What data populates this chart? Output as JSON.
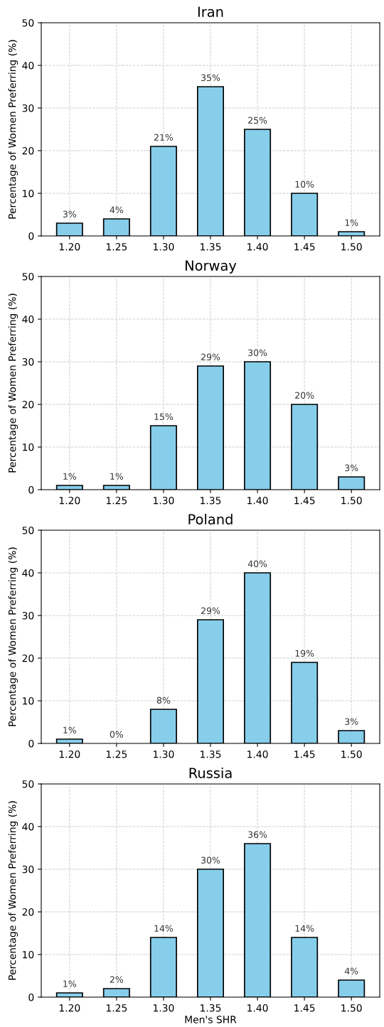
{
  "chart_data": [
    {
      "type": "bar",
      "title": "Iran",
      "ylabel": "Percentage of Women Preferring (%)",
      "categories": [
        "1.20",
        "1.25",
        "1.30",
        "1.35",
        "1.40",
        "1.45",
        "1.50"
      ],
      "values": [
        3,
        4,
        21,
        35,
        25,
        10,
        1
      ],
      "value_labels": [
        "3%",
        "4%",
        "21%",
        "35%",
        "25%",
        "10%",
        "1%"
      ],
      "color": "#87ceeb",
      "ylim": [
        0,
        50
      ],
      "yticks": [
        0,
        10,
        20,
        30,
        40,
        50
      ],
      "grid": true
    },
    {
      "type": "bar",
      "title": "Norway",
      "ylabel": "Percentage of Women Preferring (%)",
      "categories": [
        "1.20",
        "1.25",
        "1.30",
        "1.35",
        "1.40",
        "1.45",
        "1.50"
      ],
      "values": [
        1,
        1,
        15,
        29,
        30,
        20,
        3
      ],
      "value_labels": [
        "1%",
        "1%",
        "15%",
        "29%",
        "30%",
        "20%",
        "3%"
      ],
      "color": "#87ceeb",
      "ylim": [
        0,
        50
      ],
      "yticks": [
        0,
        10,
        20,
        30,
        40,
        50
      ],
      "grid": true
    },
    {
      "type": "bar",
      "title": "Poland",
      "ylabel": "Percentage of Women Preferring (%)",
      "categories": [
        "1.20",
        "1.25",
        "1.30",
        "1.35",
        "1.40",
        "1.45",
        "1.50"
      ],
      "values": [
        1,
        0,
        8,
        29,
        40,
        19,
        3
      ],
      "value_labels": [
        "1%",
        "0%",
        "8%",
        "29%",
        "40%",
        "19%",
        "3%"
      ],
      "color": "#87ceeb",
      "ylim": [
        0,
        50
      ],
      "yticks": [
        0,
        10,
        20,
        30,
        40,
        50
      ],
      "grid": true
    },
    {
      "type": "bar",
      "title": "Russia",
      "xlabel": "Men's SHR",
      "ylabel": "Percentage of Women Preferring (%)",
      "categories": [
        "1.20",
        "1.25",
        "1.30",
        "1.35",
        "1.40",
        "1.45",
        "1.50"
      ],
      "values": [
        1,
        2,
        14,
        30,
        36,
        14,
        4
      ],
      "value_labels": [
        "1%",
        "2%",
        "14%",
        "30%",
        "36%",
        "14%",
        "4%"
      ],
      "color": "#87ceeb",
      "ylim": [
        0,
        50
      ],
      "yticks": [
        0,
        10,
        20,
        30,
        40,
        50
      ],
      "grid": true
    }
  ]
}
